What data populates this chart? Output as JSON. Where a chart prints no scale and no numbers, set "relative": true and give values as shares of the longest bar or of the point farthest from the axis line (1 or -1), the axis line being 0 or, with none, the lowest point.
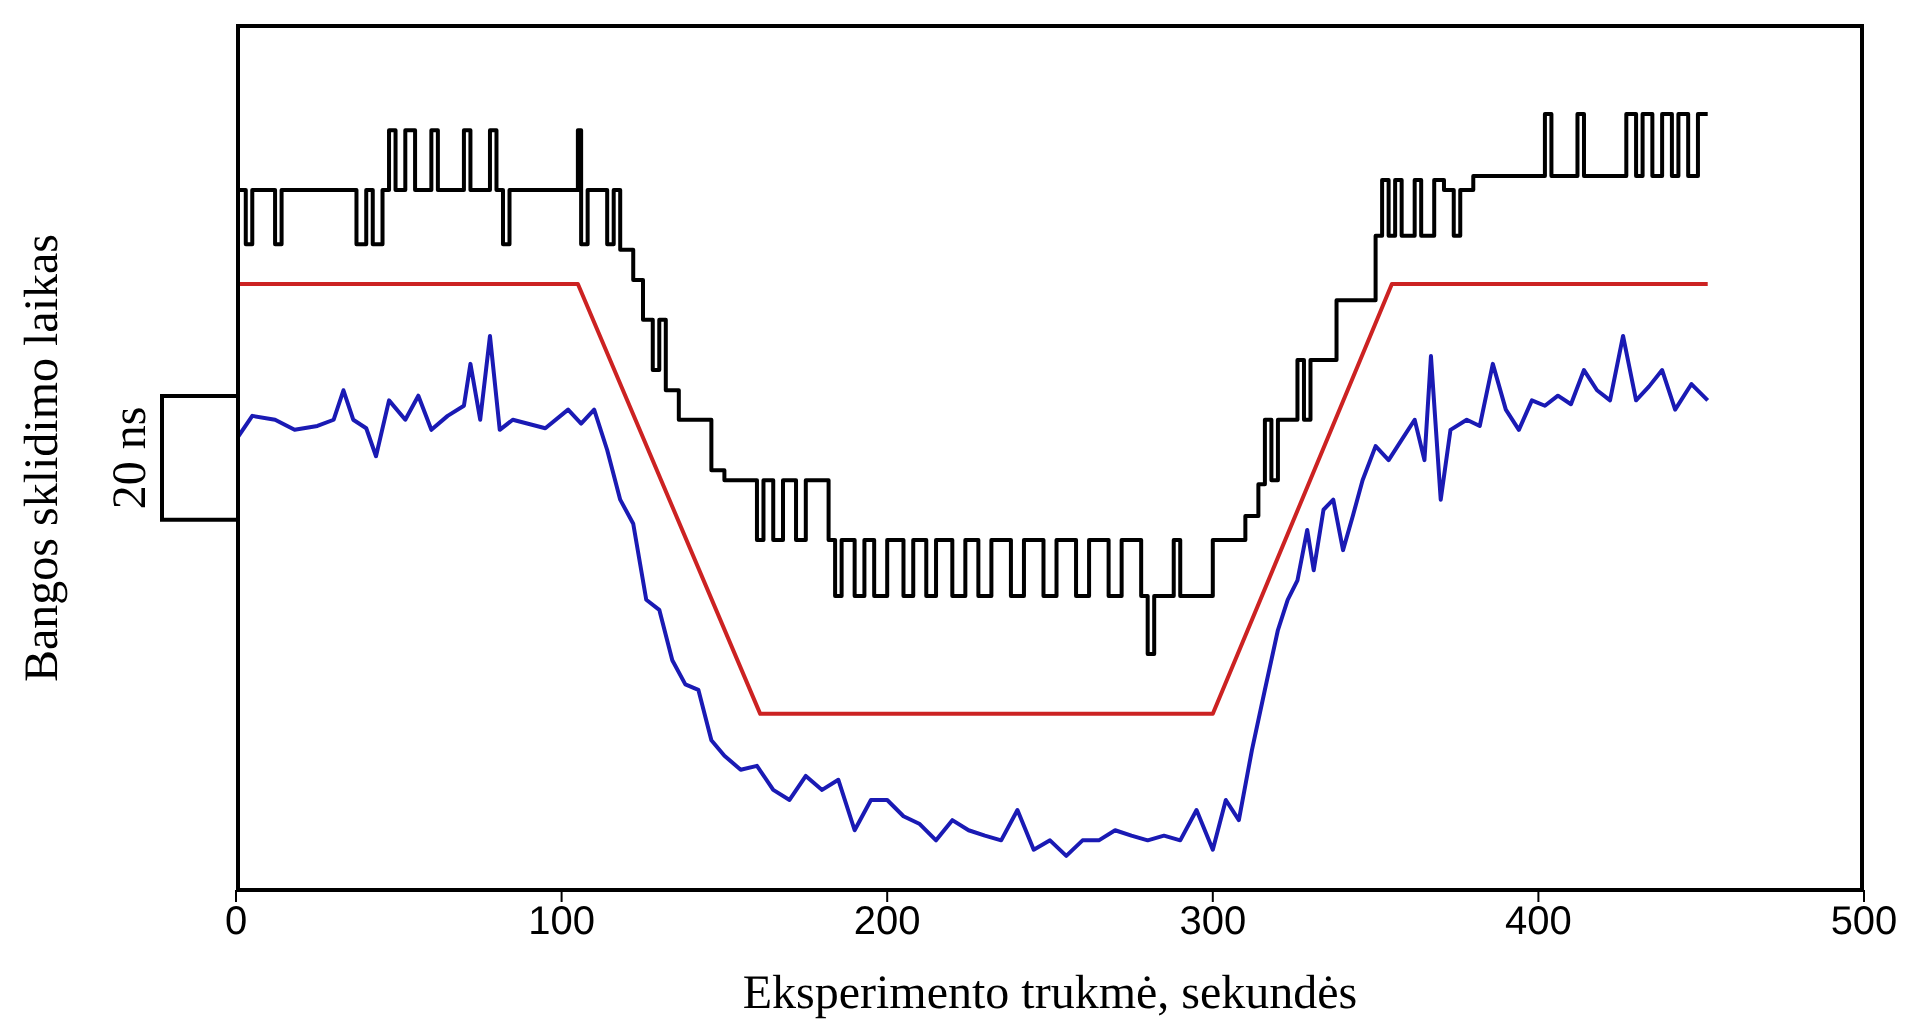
{
  "chart_data": {
    "type": "line",
    "relative": true,
    "xlabel": "Eksperimento trukmė, sekundės",
    "ylabel": "Bangos sklidimo laikas",
    "annotations": [
      "20 ns"
    ],
    "xlim": [
      0,
      500
    ],
    "xticks": [
      0,
      100,
      200,
      300,
      400,
      500
    ],
    "grid": false,
    "legend": false,
    "marker": "none",
    "line_style": "solid",
    "series": [
      {
        "type": "step",
        "color": "#000000",
        "x": [
          0,
          3,
          5,
          12,
          14,
          35,
          37,
          40,
          42,
          45,
          47,
          49,
          52,
          55,
          60,
          62,
          68,
          70,
          72,
          78,
          80,
          82,
          84,
          100,
          105,
          106,
          108,
          112,
          114,
          116,
          118,
          122,
          125,
          128,
          130,
          132,
          136,
          142,
          146,
          150,
          155,
          160,
          162,
          165,
          168,
          172,
          175,
          178,
          182,
          184,
          186,
          190,
          193,
          196,
          200,
          205,
          208,
          212,
          215,
          220,
          224,
          228,
          232,
          238,
          242,
          248,
          252,
          258,
          262,
          268,
          272,
          278,
          280,
          282,
          286,
          288,
          290,
          298,
          300,
          306,
          310,
          314,
          316,
          318,
          320,
          324,
          326,
          328,
          330,
          336,
          338,
          346,
          350,
          352,
          354,
          356,
          358,
          362,
          364,
          368,
          371,
          374,
          376,
          380,
          400,
          402,
          404,
          410,
          412,
          414,
          425,
          427,
          430,
          432,
          435,
          438,
          441,
          443,
          446,
          449,
          452
        ],
        "values": [
          0.902,
          0.832,
          0.902,
          0.832,
          0.902,
          0.902,
          0.832,
          0.902,
          0.832,
          0.902,
          0.979,
          0.902,
          0.979,
          0.902,
          0.979,
          0.902,
          0.902,
          0.979,
          0.902,
          0.979,
          0.902,
          0.832,
          0.902,
          0.902,
          0.979,
          0.832,
          0.902,
          0.902,
          0.832,
          0.902,
          0.825,
          0.786,
          0.735,
          0.67,
          0.735,
          0.644,
          0.606,
          0.606,
          0.541,
          0.528,
          0.528,
          0.451,
          0.528,
          0.451,
          0.528,
          0.451,
          0.528,
          0.528,
          0.451,
          0.379,
          0.451,
          0.379,
          0.451,
          0.379,
          0.451,
          0.379,
          0.451,
          0.379,
          0.451,
          0.379,
          0.451,
          0.379,
          0.451,
          0.379,
          0.451,
          0.379,
          0.451,
          0.379,
          0.451,
          0.379,
          0.451,
          0.379,
          0.304,
          0.379,
          0.379,
          0.451,
          0.379,
          0.379,
          0.451,
          0.451,
          0.482,
          0.523,
          0.606,
          0.528,
          0.606,
          0.606,
          0.683,
          0.606,
          0.683,
          0.683,
          0.76,
          0.76,
          0.843,
          0.915,
          0.843,
          0.915,
          0.843,
          0.915,
          0.843,
          0.915,
          0.902,
          0.843,
          0.902,
          0.92,
          0.92,
          1.0,
          0.92,
          0.92,
          1.0,
          0.92,
          0.92,
          1.0,
          0.92,
          1.0,
          0.92,
          1.0,
          0.92,
          1.0,
          0.92,
          1.0,
          1.0
        ]
      },
      {
        "color": "#cc2222",
        "x": [
          0,
          105,
          161,
          300,
          355,
          452
        ],
        "values": [
          0.781,
          0.781,
          0.227,
          0.227,
          0.781,
          0.781
        ]
      },
      {
        "color": "#1a1ab4",
        "x": [
          0,
          5,
          12,
          18,
          25,
          30,
          33,
          36,
          40,
          43,
          47,
          52,
          56,
          60,
          65,
          70,
          72,
          75,
          78,
          81,
          85,
          95,
          102,
          106,
          110,
          114,
          118,
          122,
          126,
          130,
          134,
          138,
          142,
          146,
          150,
          155,
          160,
          165,
          170,
          175,
          180,
          185,
          190,
          195,
          200,
          205,
          210,
          215,
          220,
          225,
          230,
          235,
          240,
          245,
          250,
          255,
          260,
          265,
          270,
          275,
          280,
          285,
          290,
          295,
          300,
          304,
          308,
          312,
          316,
          320,
          323,
          326,
          329,
          331,
          334,
          337,
          340,
          343,
          346,
          350,
          354,
          358,
          362,
          365,
          367,
          370,
          373,
          378,
          382,
          386,
          390,
          394,
          398,
          402,
          406,
          410,
          414,
          418,
          422,
          426,
          430,
          434,
          438,
          442,
          447,
          452
        ],
        "values": [
          0.58,
          0.611,
          0.606,
          0.593,
          0.598,
          0.606,
          0.644,
          0.606,
          0.595,
          0.559,
          0.631,
          0.606,
          0.637,
          0.593,
          0.611,
          0.624,
          0.678,
          0.606,
          0.714,
          0.593,
          0.606,
          0.595,
          0.619,
          0.601,
          0.619,
          0.567,
          0.503,
          0.472,
          0.374,
          0.361,
          0.296,
          0.265,
          0.258,
          0.193,
          0.173,
          0.155,
          0.16,
          0.129,
          0.116,
          0.147,
          0.129,
          0.142,
          0.077,
          0.116,
          0.116,
          0.095,
          0.085,
          0.064,
          0.09,
          0.077,
          0.07,
          0.064,
          0.103,
          0.052,
          0.064,
          0.044,
          0.064,
          0.064,
          0.077,
          0.07,
          0.064,
          0.07,
          0.064,
          0.103,
          0.052,
          0.116,
          0.09,
          0.18,
          0.258,
          0.335,
          0.374,
          0.399,
          0.464,
          0.412,
          0.49,
          0.503,
          0.438,
          0.482,
          0.528,
          0.572,
          0.554,
          0.58,
          0.606,
          0.554,
          0.688,
          0.503,
          0.593,
          0.606,
          0.598,
          0.678,
          0.619,
          0.593,
          0.631,
          0.624,
          0.637,
          0.626,
          0.67,
          0.644,
          0.631,
          0.714,
          0.631,
          0.649,
          0.67,
          0.619,
          0.652,
          0.631
        ]
      }
    ]
  }
}
